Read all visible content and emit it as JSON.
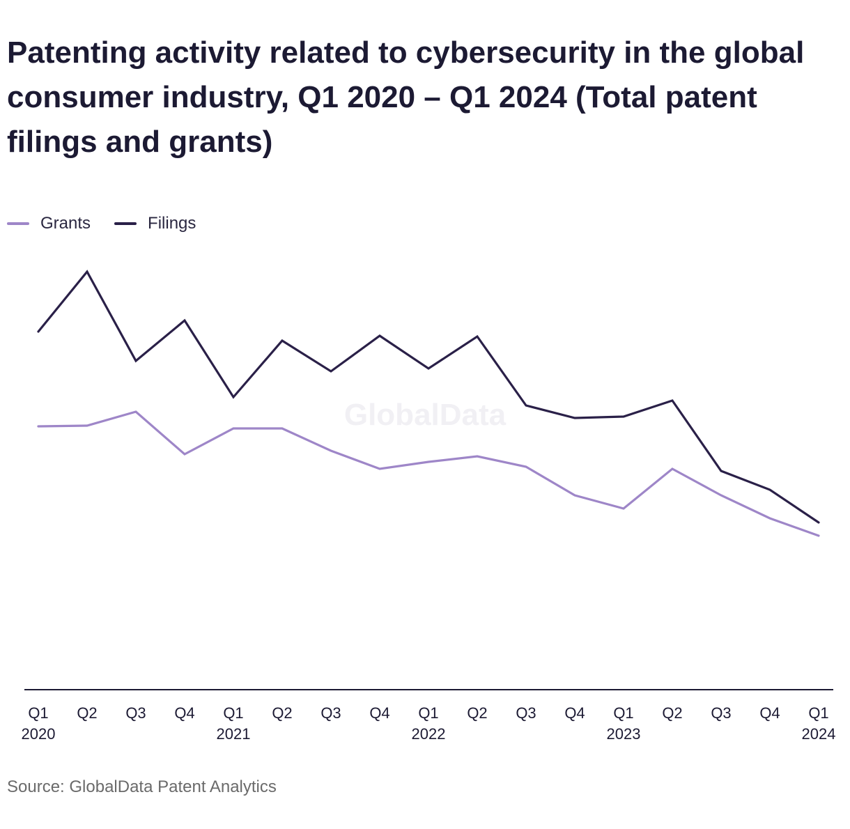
{
  "title": "Patenting activity related to cybersecurity in the global consumer industry, Q1 2020 – Q1 2024 (Total patent filings and grants)",
  "source": "Source: GlobalData Patent Analytics",
  "watermark": "GlobalData",
  "colors": {
    "grants": "#9e86c8",
    "filings": "#2a2048",
    "axis": "#1c1a33",
    "text": "#1c1a33"
  },
  "chart_data": {
    "type": "line",
    "categories": [
      "Q1 2020",
      "Q2 2020",
      "Q3 2020",
      "Q4 2020",
      "Q1 2021",
      "Q2 2021",
      "Q3 2021",
      "Q4 2021",
      "Q1 2022",
      "Q2 2022",
      "Q3 2022",
      "Q4 2022",
      "Q1 2023",
      "Q2 2023",
      "Q3 2023",
      "Q4 2023",
      "Q1 2024"
    ],
    "tick_labels": [
      [
        "Q1",
        "2020"
      ],
      [
        "Q2",
        ""
      ],
      [
        "Q3",
        ""
      ],
      [
        "Q4",
        ""
      ],
      [
        "Q1",
        "2021"
      ],
      [
        "Q2",
        ""
      ],
      [
        "Q3",
        ""
      ],
      [
        "Q4",
        ""
      ],
      [
        "Q1",
        "2022"
      ],
      [
        "Q2",
        ""
      ],
      [
        "Q3",
        ""
      ],
      [
        "Q4",
        ""
      ],
      [
        "Q1",
        "2023"
      ],
      [
        "Q2",
        ""
      ],
      [
        "Q3",
        ""
      ],
      [
        "Q4",
        ""
      ],
      [
        "Q1",
        "2024"
      ]
    ],
    "ylim": [
      0,
      600
    ],
    "series": [
      {
        "name": "Grants",
        "values": [
          378,
          379,
          399,
          338,
          375,
          375,
          343,
          317,
          327,
          335,
          320,
          279,
          260,
          317,
          279,
          246,
          221
        ]
      },
      {
        "name": "Filings",
        "values": [
          514,
          600,
          472,
          530,
          420,
          501,
          457,
          508,
          461,
          507,
          408,
          390,
          392,
          415,
          314,
          287,
          240
        ]
      }
    ],
    "grid": false,
    "legend_position": "top-left"
  }
}
